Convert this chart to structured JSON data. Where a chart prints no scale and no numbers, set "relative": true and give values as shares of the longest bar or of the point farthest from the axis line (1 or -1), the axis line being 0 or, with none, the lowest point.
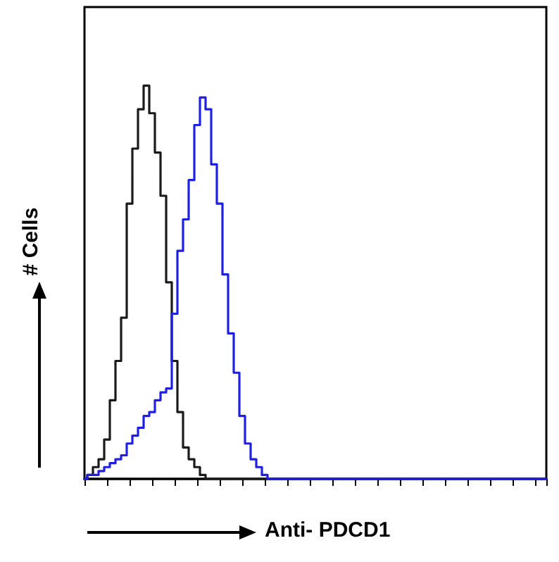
{
  "chart_data": {
    "type": "step",
    "relative": true,
    "xlabel": "Anti- PDCD1",
    "ylabel": "# Cells",
    "grid": false,
    "marker": "none",
    "line_style": "solid",
    "categories": [
      null,
      null,
      null,
      null,
      null,
      null,
      null,
      null,
      null,
      null,
      null,
      null,
      null,
      null,
      null,
      null,
      null,
      null,
      null,
      null,
      null,
      null,
      null,
      null,
      null,
      null,
      null,
      null,
      null,
      null,
      null,
      null,
      null,
      null,
      null,
      null,
      null,
      null,
      null,
      null,
      null,
      null,
      null,
      null,
      null,
      null,
      null,
      null,
      null,
      null,
      null,
      null,
      null,
      null,
      null,
      null,
      null,
      null,
      null,
      null,
      null,
      null,
      null,
      null,
      null,
      null,
      null,
      null,
      null,
      null,
      null,
      null,
      null,
      null,
      null,
      null,
      null,
      null,
      null,
      null,
      null,
      null,
      null
    ],
    "series": [
      {
        "color": "#1a1a1a",
        "values": [
          0,
          0.01,
          0.03,
          0.05,
          0.1,
          0.2,
          0.3,
          0.41,
          0.7,
          0.84,
          0.94,
          1,
          0.93,
          0.83,
          0.72,
          0.5,
          0.3,
          0.17,
          0.08,
          0.05,
          0.03,
          0.01,
          0,
          0,
          0,
          0,
          0,
          0,
          0,
          0,
          0,
          0,
          0,
          0,
          0,
          0,
          0,
          0,
          0,
          0,
          0,
          0,
          0,
          0,
          0,
          0,
          0,
          0,
          0,
          0,
          0,
          0,
          0,
          0,
          0,
          0,
          0,
          0,
          0,
          0,
          0,
          0,
          0,
          0,
          0,
          0,
          0,
          0,
          0,
          0,
          0,
          0,
          0,
          0,
          0,
          0,
          0,
          0,
          0,
          0,
          0,
          0,
          0
        ]
      },
      {
        "color": "#2020e0",
        "values": [
          0,
          0.01,
          0.01,
          0.02,
          0.03,
          0.04,
          0.05,
          0.06,
          0.09,
          0.11,
          0.13,
          0.16,
          0.17,
          0.2,
          0.22,
          0.23,
          0.42,
          0.58,
          0.66,
          0.76,
          0.9,
          0.97,
          0.94,
          0.8,
          0.7,
          0.52,
          0.37,
          0.27,
          0.16,
          0.09,
          0.05,
          0.03,
          0.01,
          0,
          0,
          0,
          0,
          0,
          0,
          0,
          0,
          0,
          0,
          0,
          0,
          0,
          0,
          0,
          0,
          0,
          0,
          0,
          0,
          0,
          0,
          0,
          0,
          0,
          0,
          0,
          0,
          0,
          0,
          0,
          0,
          0,
          0,
          0,
          0,
          0,
          0,
          0,
          0,
          0,
          0,
          0,
          0,
          0,
          0,
          0,
          0,
          0,
          0
        ]
      }
    ]
  }
}
